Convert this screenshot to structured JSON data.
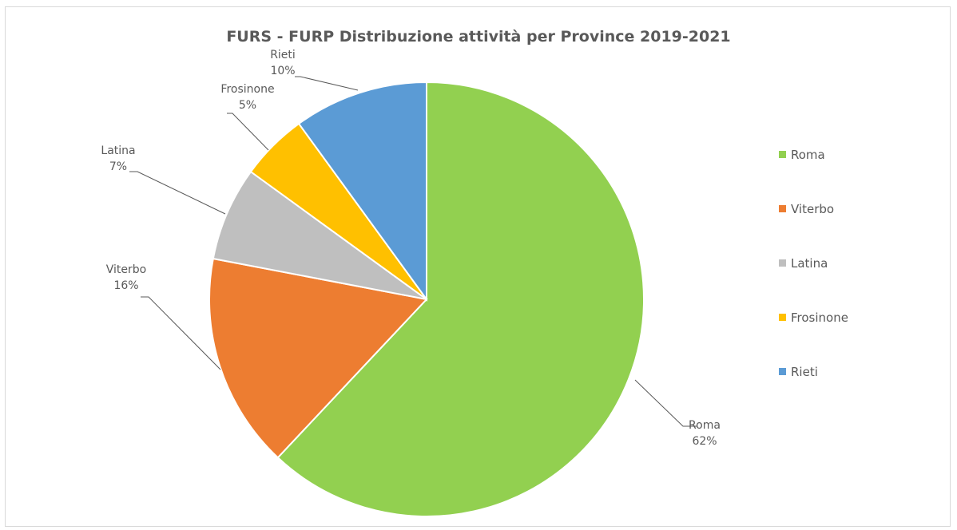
{
  "chart_data": {
    "type": "pie",
    "title": "FURS - FURP  Distribuzione attività per Province 2019-2021",
    "categories": [
      "Roma",
      "Viterbo",
      "Latina",
      "Frosinone",
      "Rieti"
    ],
    "values": [
      62,
      16,
      7,
      5,
      10
    ],
    "value_labels": [
      "62%",
      "16%",
      "7%",
      "5%",
      "10%"
    ],
    "colors": [
      "#92d050",
      "#ed7d31",
      "#bfbfbf",
      "#ffc000",
      "#5b9bd5"
    ],
    "start_angle_deg": 0,
    "direction": "clockwise",
    "legend_position": "right"
  }
}
